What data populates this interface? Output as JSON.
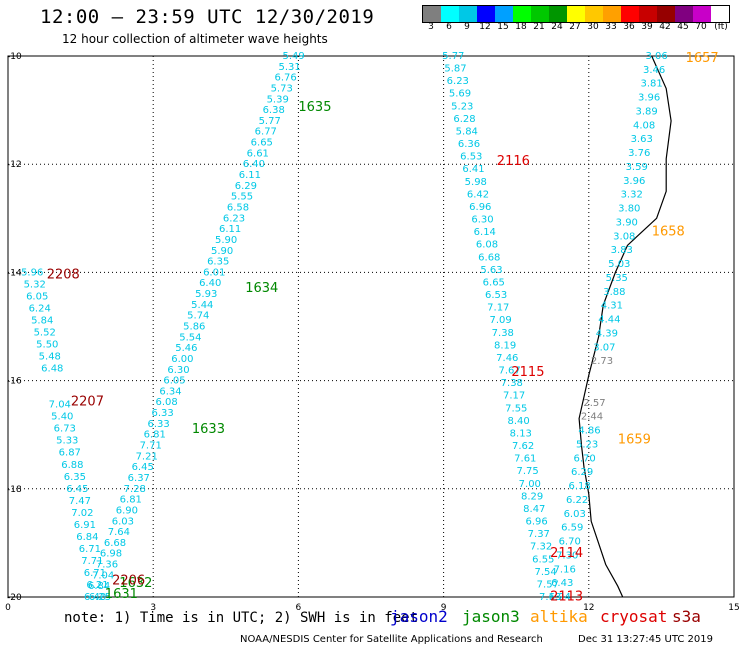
{
  "header": {
    "title": "12:00 – 23:59 UTC 12/30/2019",
    "subtitle": "12 hour collection of altimeter wave heights"
  },
  "colorbar": {
    "colors": [
      "#7f7f7f",
      "#00ffff",
      "#00c8e6",
      "#0000ff",
      "#00a0ff",
      "#00ff00",
      "#00c800",
      "#009600",
      "#ffff00",
      "#ffc800",
      "#ffa000",
      "#ff0000",
      "#c80000",
      "#960000",
      "#800080",
      "#c800c8",
      "#ffffff",
      "#000000"
    ],
    "labels": [
      "3",
      "6",
      "9",
      "12",
      "15",
      "18",
      "21",
      "24",
      "27",
      "30",
      "33",
      "36",
      "39",
      "42",
      "45",
      "70",
      "(ft)"
    ]
  },
  "axes": {
    "x_ticks": [
      "0",
      "3",
      "6",
      "9",
      "12",
      "15"
    ],
    "y_ticks": [
      "-10",
      "-12",
      "-14",
      "-16",
      "-18",
      "-20"
    ]
  },
  "footer": {
    "note": "note:  1) Time is in UTC;  2) SWH is in feet",
    "satellites": [
      {
        "name": "jason2",
        "color": "#0000cc"
      },
      {
        "name": "jason3",
        "color": "#008800"
      },
      {
        "name": "altika",
        "color": "#ff9900"
      },
      {
        "name": "cryosat",
        "color": "#dd0000"
      },
      {
        "name": "s3a",
        "color": "#990000"
      }
    ],
    "credit": "NOAA/NESDIS Center for Satellite Applications and Research",
    "timestamp": "Dec 31 13:27:45 UTC 2019"
  },
  "colors": {
    "cyan": "#00c8e6",
    "gray": "#808080",
    "jason3": "#008800",
    "altika": "#ff9900",
    "cryosat": "#dd0000",
    "s3a": "#990000"
  },
  "tracks": [
    {
      "name": "jason3-track-a",
      "start": [
        -10.0,
        5.9
      ],
      "end": [
        -20.0,
        1.8
      ],
      "values": [
        "5.49",
        "5.31",
        "6.76",
        "5.73",
        "5.39",
        "6.38",
        "5.77",
        "6.77",
        "6.65",
        "6.61",
        "6.40",
        "6.11",
        "6.29",
        "5.55",
        "6.58",
        "6.23",
        "6.11",
        "5.90",
        "5.90",
        "6.35",
        "6.01",
        "6.40",
        "5.93",
        "5.44",
        "5.74",
        "5.86",
        "5.54",
        "5.46",
        "6.00",
        "6.30",
        "6.05",
        "6.34",
        "6.08",
        "6.33",
        "6.33",
        "6.81",
        "7.71",
        "7.21",
        "6.45",
        "6.37",
        "7.28",
        "6.81",
        "6.90",
        "6.03",
        "7.64",
        "6.68",
        "6.98",
        "7.36",
        "7.04",
        "6.84",
        "6.40"
      ]
    },
    {
      "name": "s3a-track",
      "start": [
        -14.0,
        0.5
      ],
      "end": [
        -20.0,
        1.9
      ],
      "values": [
        "5.96",
        "5.32",
        "6.05",
        "6.24",
        "5.84",
        "5.52",
        "5.50",
        "5.48",
        "6.48",
        "",
        "",
        "7.04",
        "5.40",
        "6.73",
        "5.33",
        "6.87",
        "6.88",
        "6.35",
        "6.45",
        "7.47",
        "7.02",
        "6.91",
        "6.84",
        "6.71",
        "7.71",
        "6.71",
        "6.21",
        "6.25"
      ]
    },
    {
      "name": "cryosat-track",
      "start": [
        -10.0,
        9.2
      ],
      "end": [
        -20.0,
        11.2
      ],
      "values": [
        "5.77",
        "5.87",
        "6.23",
        "5.69",
        "5.23",
        "6.28",
        "5.84",
        "6.36",
        "6.53",
        "6.41",
        "5.98",
        "6.42",
        "6.96",
        "6.30",
        "6.14",
        "6.08",
        "6.68",
        "5.63",
        "6.65",
        "6.53",
        "7.17",
        "7.09",
        "7.38",
        "8.19",
        "7.46",
        "7.67",
        "7.38",
        "7.17",
        "7.55",
        "8.40",
        "8.13",
        "7.62",
        "7.61",
        "7.75",
        "7.00",
        "8.29",
        "8.47",
        "6.96",
        "7.37",
        "7.32",
        "6.55",
        "7.54",
        "7.57",
        "7.13"
      ]
    },
    {
      "name": "altika-track",
      "start": [
        -10.0,
        13.4
      ],
      "end": [
        -20.0,
        11.4
      ],
      "values": [
        "3.06",
        "3.46",
        "3.81",
        "3.96",
        "3.89",
        "4.08",
        "3.63",
        "3.76",
        "3.59",
        "3.96",
        "3.32",
        "3.80",
        "3.90",
        "3.08",
        "3.83",
        "5.03",
        "5.35",
        "3.88",
        "4.31",
        "4.44",
        "4.39",
        "3.07",
        "2.73",
        "",
        "",
        "2.57",
        "2.44",
        "4.86",
        "5.23",
        "6.70",
        "6.29",
        "6.18",
        "6.22",
        "6.03",
        "6.59",
        "6.70",
        "7.30",
        "7.16",
        "6.43",
        "6.24"
      ]
    }
  ],
  "labels": [
    {
      "text": "1635",
      "lat": -10.95,
      "lon": 6.0,
      "color": "jason3"
    },
    {
      "text": "1634",
      "lat": -14.3,
      "lon": 4.9,
      "color": "jason3"
    },
    {
      "text": "1633",
      "lat": -16.9,
      "lon": 3.8,
      "color": "jason3"
    },
    {
      "text": "1632",
      "lat": -19.75,
      "lon": 2.3,
      "color": "jason3"
    },
    {
      "text": "1631",
      "lat": -19.95,
      "lon": 2.0,
      "color": "jason3"
    },
    {
      "text": "2208",
      "lat": -14.05,
      "lon": 0.8,
      "color": "s3a"
    },
    {
      "text": "2207",
      "lat": -16.4,
      "lon": 1.3,
      "color": "s3a"
    },
    {
      "text": "2206",
      "lat": -19.7,
      "lon": 2.15,
      "color": "s3a"
    },
    {
      "text": "2116",
      "lat": -11.95,
      "lon": 10.1,
      "color": "cryosat"
    },
    {
      "text": "2115",
      "lat": -15.85,
      "lon": 10.4,
      "color": "cryosat"
    },
    {
      "text": "2114",
      "lat": -19.2,
      "lon": 11.2,
      "color": "cryosat"
    },
    {
      "text": "2113",
      "lat": -20.0,
      "lon": 11.2,
      "color": "cryosat"
    },
    {
      "text": "1657",
      "lat": -10.05,
      "lon": 14.0,
      "color": "altika"
    },
    {
      "text": "1658",
      "lat": -13.25,
      "lon": 13.3,
      "color": "altika"
    },
    {
      "text": "1659",
      "lat": -17.1,
      "lon": 12.6,
      "color": "altika"
    }
  ],
  "coastline": [
    [
      -10.0,
      13.3
    ],
    [
      -10.6,
      13.6
    ],
    [
      -11.2,
      13.7
    ],
    [
      -11.9,
      13.6
    ],
    [
      -12.5,
      13.6
    ],
    [
      -13.0,
      13.4
    ],
    [
      -13.5,
      12.8
    ],
    [
      -14.0,
      12.55
    ],
    [
      -14.6,
      12.3
    ],
    [
      -15.2,
      12.2
    ],
    [
      -15.9,
      12.0
    ],
    [
      -16.3,
      11.9
    ],
    [
      -16.7,
      11.8
    ],
    [
      -17.2,
      11.85
    ],
    [
      -17.6,
      11.9
    ],
    [
      -18.1,
      12.0
    ],
    [
      -18.6,
      12.05
    ],
    [
      -19.0,
      12.2
    ],
    [
      -19.4,
      12.35
    ],
    [
      -19.8,
      12.6
    ],
    [
      -20.0,
      12.7
    ]
  ]
}
